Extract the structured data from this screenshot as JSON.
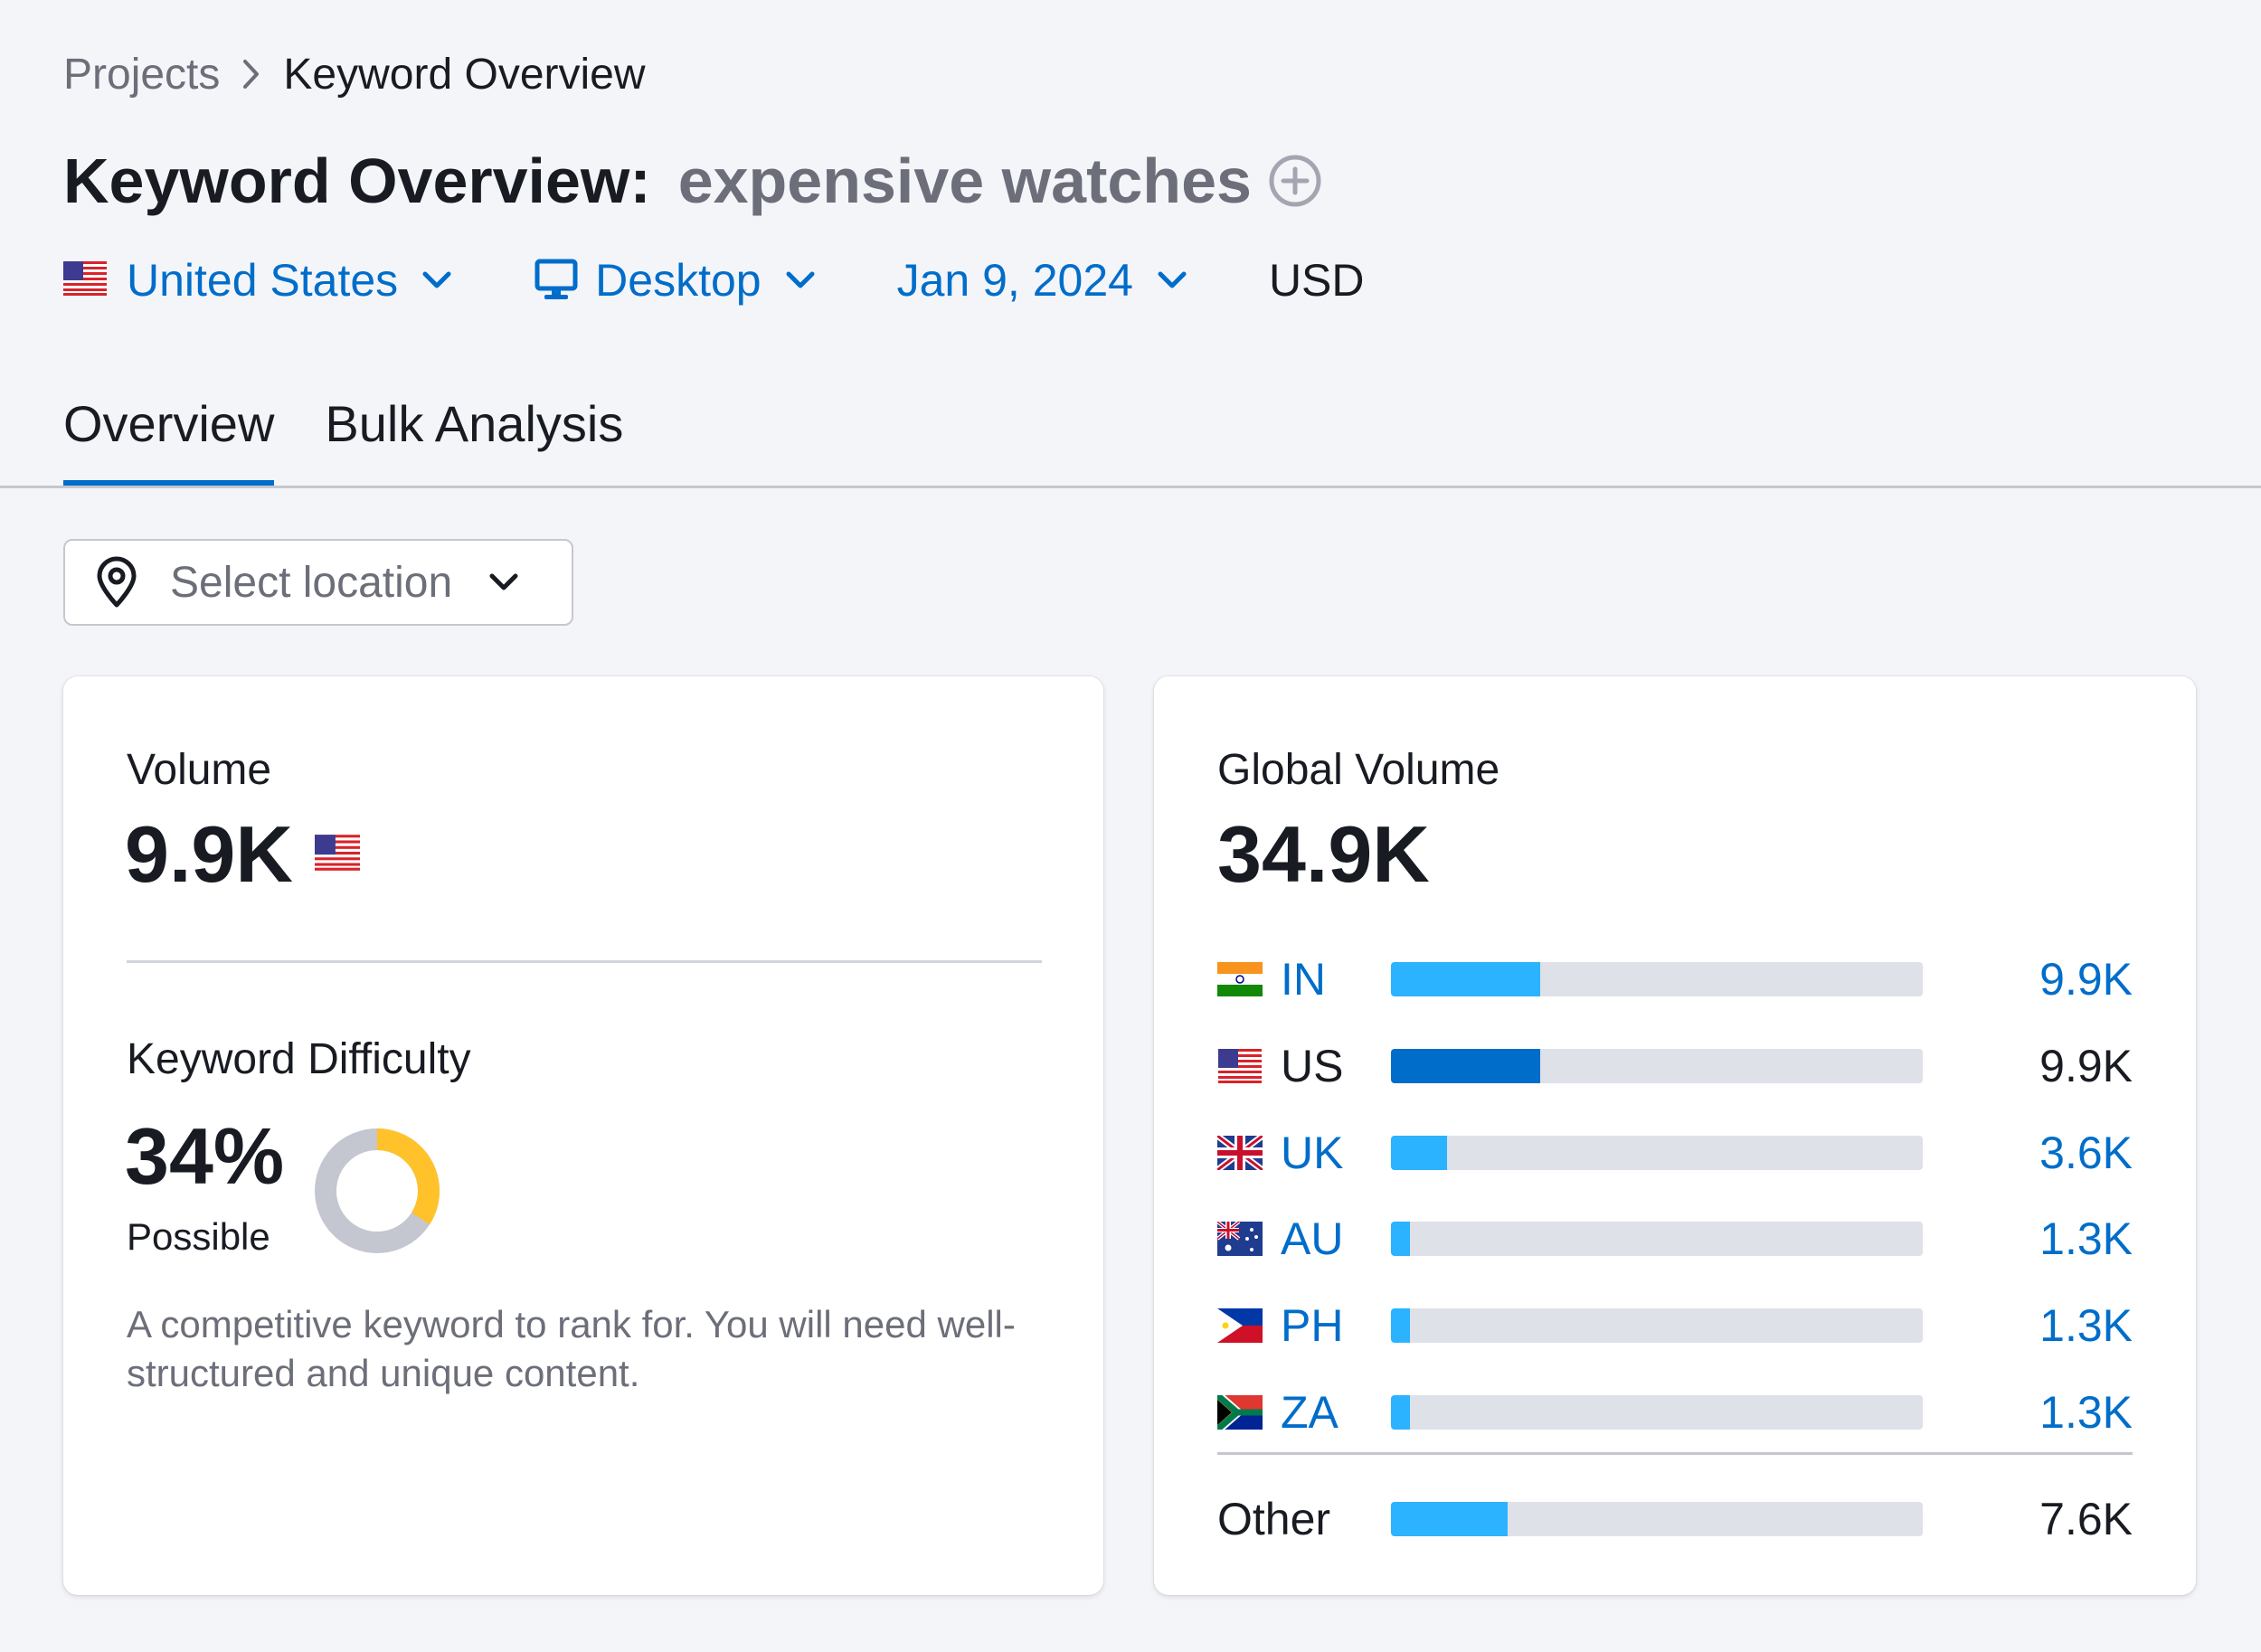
{
  "breadcrumb": {
    "projects": "Projects",
    "current": "Keyword Overview"
  },
  "title": {
    "prefix": "Keyword Overview:",
    "keyword": "expensive watches",
    "add_icon": "plus-circle-icon"
  },
  "filters": {
    "country": "United States",
    "device": "Desktop",
    "date": "Jan 9, 2024",
    "currency": "USD"
  },
  "tabs": [
    {
      "label": "Overview",
      "active": true
    },
    {
      "label": "Bulk Analysis",
      "active": false
    }
  ],
  "location_select": {
    "placeholder": "Select location",
    "icon": "map-pin-icon"
  },
  "volume": {
    "label": "Volume",
    "value": "9.9K",
    "flag": "us-flag"
  },
  "keyword_difficulty": {
    "label": "Keyword Difficulty",
    "value": "34%",
    "percent": 34,
    "level": "Possible",
    "description": "A competitive keyword to rank for. You will need well-structured and unique content.",
    "colors": {
      "fill": "#ffc22a",
      "track": "#c4c7cf"
    }
  },
  "global_volume": {
    "label": "Global Volume",
    "value": "34.9K",
    "countries": [
      {
        "code": "IN",
        "value": "9.9K",
        "share": 0.28,
        "link": true
      },
      {
        "code": "US",
        "value": "9.9K",
        "share": 0.28,
        "link": false
      },
      {
        "code": "UK",
        "value": "3.6K",
        "share": 0.105,
        "link": true
      },
      {
        "code": "AU",
        "value": "1.3K",
        "share": 0.035,
        "link": true
      },
      {
        "code": "PH",
        "value": "1.3K",
        "share": 0.035,
        "link": true
      },
      {
        "code": "ZA",
        "value": "1.3K",
        "share": 0.035,
        "link": true
      }
    ],
    "other": {
      "label": "Other",
      "value": "7.6K",
      "share": 0.22
    },
    "colors": {
      "bar": "#2bb3ff",
      "bar_selected": "#006dca",
      "track": "#dfe1e8"
    }
  }
}
